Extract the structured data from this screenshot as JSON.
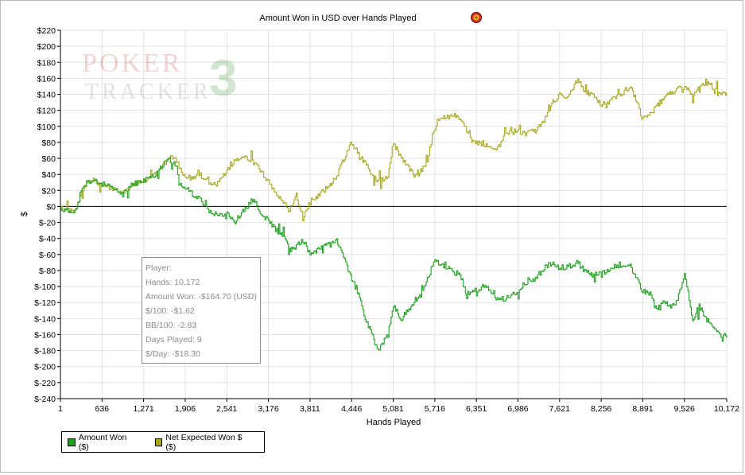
{
  "chart_data": {
    "type": "line",
    "title": "Amount Won in USD over Hands Played",
    "xlabel": "Hands Played",
    "ylabel": "$",
    "xlim": [
      1,
      10172
    ],
    "ylim": [
      -240,
      220
    ],
    "y_tick_step": 20,
    "x_ticks": [
      1,
      636,
      1271,
      1906,
      2541,
      3176,
      3811,
      4446,
      5081,
      5716,
      6351,
      6986,
      7621,
      8256,
      8891,
      9526,
      10172
    ],
    "x_tick_labels": [
      "1",
      "636",
      "1,271",
      "1,906",
      "2,541",
      "3,176",
      "3,811",
      "4,446",
      "5,081",
      "5,716",
      "6,351",
      "6,986",
      "7,621",
      "8,256",
      "8,891",
      "9,526",
      "10,172"
    ],
    "y_tick_labels": [
      "$220",
      "$200",
      "$180",
      "$160",
      "$140",
      "$120",
      "$100",
      "$80",
      "$60",
      "$40",
      "$20",
      "$0",
      "$-20",
      "$-40",
      "$-60",
      "$-80",
      "$-100",
      "$-120",
      "$-140",
      "$-160",
      "$-180",
      "$-200",
      "$-220",
      "$-240"
    ],
    "grid": true,
    "legend_position": "bottom-left",
    "series": [
      {
        "name": "Amount Won ($)",
        "color": "#1fa01f",
        "x": [
          1,
          100,
          250,
          300,
          400,
          500,
          636,
          800,
          950,
          1100,
          1271,
          1450,
          1600,
          1680,
          1750,
          1830,
          1906,
          2000,
          2100,
          2250,
          2400,
          2541,
          2650,
          2800,
          2950,
          3050,
          3176,
          3300,
          3400,
          3500,
          3600,
          3700,
          3811,
          3900,
          4000,
          4100,
          4200,
          4300,
          4446,
          4550,
          4650,
          4750,
          4850,
          5000,
          5081,
          5200,
          5300,
          5400,
          5500,
          5600,
          5716,
          5850,
          6000,
          6100,
          6200,
          6351,
          6500,
          6650,
          6800,
          6986,
          7100,
          7250,
          7400,
          7500,
          7621,
          7750,
          7900,
          8000,
          8100,
          8256,
          8400,
          8550,
          8700,
          8800,
          8891,
          9000,
          9100,
          9200,
          9300,
          9400,
          9526,
          9650,
          9750,
          9850,
          9950,
          10050,
          10172
        ],
        "y": [
          -3,
          -6,
          -4,
          15,
          30,
          32,
          28,
          22,
          15,
          28,
          32,
          40,
          55,
          58,
          52,
          30,
          22,
          18,
          10,
          -5,
          -10,
          -8,
          -20,
          -5,
          10,
          -10,
          -18,
          -30,
          -35,
          -55,
          -50,
          -42,
          -60,
          -55,
          -48,
          -45,
          -42,
          -60,
          -90,
          -110,
          -140,
          -160,
          -180,
          -160,
          -125,
          -140,
          -130,
          -118,
          -110,
          -90,
          -68,
          -75,
          -82,
          -85,
          -110,
          -105,
          -100,
          -115,
          -115,
          -105,
          -95,
          -90,
          -75,
          -72,
          -78,
          -75,
          -70,
          -80,
          -85,
          -85,
          -78,
          -72,
          -75,
          -90,
          -105,
          -110,
          -130,
          -120,
          -125,
          -120,
          -85,
          -140,
          -125,
          -140,
          -150,
          -160,
          -163
        ]
      },
      {
        "name": "Net Expected Won $ ($)",
        "color": "#a7a820",
        "x": [
          1,
          100,
          250,
          300,
          400,
          500,
          636,
          800,
          950,
          1100,
          1271,
          1450,
          1600,
          1680,
          1750,
          1830,
          1906,
          2000,
          2100,
          2250,
          2400,
          2541,
          2650,
          2800,
          2950,
          3050,
          3176,
          3300,
          3400,
          3500,
          3600,
          3700,
          3811,
          3900,
          4000,
          4100,
          4200,
          4300,
          4446,
          4550,
          4650,
          4750,
          4850,
          5000,
          5081,
          5200,
          5300,
          5400,
          5500,
          5600,
          5716,
          5850,
          6000,
          6100,
          6200,
          6351,
          6500,
          6650,
          6800,
          6986,
          7100,
          7250,
          7400,
          7500,
          7621,
          7750,
          7900,
          8000,
          8100,
          8256,
          8400,
          8550,
          8700,
          8800,
          8891,
          9000,
          9100,
          9200,
          9300,
          9400,
          9526,
          9650,
          9750,
          9850,
          9950,
          10050,
          10172
        ],
        "y": [
          -3,
          -6,
          -4,
          15,
          30,
          32,
          28,
          22,
          15,
          28,
          32,
          40,
          55,
          60,
          60,
          45,
          38,
          35,
          42,
          30,
          28,
          45,
          55,
          60,
          58,
          45,
          30,
          15,
          5,
          -5,
          15,
          -15,
          5,
          12,
          18,
          25,
          35,
          55,
          80,
          65,
          55,
          40,
          30,
          38,
          80,
          60,
          50,
          40,
          45,
          55,
          105,
          110,
          115,
          110,
          95,
          80,
          75,
          70,
          90,
          95,
          90,
          95,
          110,
          128,
          140,
          135,
          160,
          145,
          140,
          128,
          132,
          140,
          150,
          130,
          108,
          115,
          125,
          135,
          140,
          145,
          150,
          138,
          148,
          155,
          150,
          140,
          142
        ]
      }
    ]
  },
  "legend": {
    "items": [
      {
        "label": "Amount Won ($)",
        "color": "#1fa01f"
      },
      {
        "label": "Net Expected Won $ ($)",
        "color": "#a7a820"
      }
    ]
  },
  "info_box": {
    "lines": [
      "Player:",
      "Hands: 10,172",
      "Amount Won: -$164.70 (USD)",
      "$/100: -$1.62",
      "BB/100: -2.83",
      "Days Played: 9",
      "$/Day: -$18.30"
    ]
  },
  "watermark": {
    "word1": "POKER",
    "word2": "TRACKER",
    "numeral": "3"
  },
  "colors": {
    "amount_won": "#1fa01f",
    "net_expected": "#a7a820",
    "zero_line": "#000000",
    "grid": "#e2e2e2"
  },
  "icons": {
    "title_logo": "pokertracker-chip-icon"
  }
}
